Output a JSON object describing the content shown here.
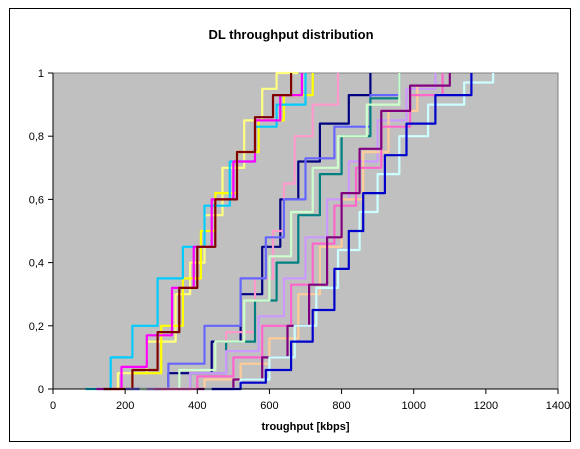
{
  "chart_data": {
    "type": "line",
    "title": "DL throughput distribution",
    "xlabel": "troughput [kbps]",
    "ylabel": "",
    "xlim": [
      0,
      1400
    ],
    "ylim": [
      0,
      1
    ],
    "x_ticks": [
      "0",
      "200",
      "400",
      "600",
      "800",
      "1000",
      "1200",
      "1400"
    ],
    "y_ticks": [
      "0",
      "0,2",
      "0,4",
      "0,6",
      "0,8",
      "1"
    ],
    "grid": false,
    "plot_background": "#c0c0c0",
    "series": [
      {
        "color": "#ffff80",
        "points": [
          [
            100,
            0
          ],
          [
            180,
            0.05
          ],
          [
            260,
            0.15
          ],
          [
            340,
            0.3
          ],
          [
            380,
            0.4
          ],
          [
            420,
            0.55
          ],
          [
            470,
            0.7
          ],
          [
            530,
            0.85
          ],
          [
            580,
            0.95
          ],
          [
            620,
            1
          ],
          [
            680,
            1
          ]
        ]
      },
      {
        "color": "#ffff00",
        "points": [
          [
            140,
            0
          ],
          [
            220,
            0.05
          ],
          [
            300,
            0.2
          ],
          [
            360,
            0.35
          ],
          [
            410,
            0.5
          ],
          [
            450,
            0.62
          ],
          [
            510,
            0.75
          ],
          [
            570,
            0.85
          ],
          [
            640,
            0.93
          ],
          [
            720,
            1
          ]
        ]
      },
      {
        "color": "#00ccff",
        "points": [
          [
            90,
            0
          ],
          [
            160,
            0.1
          ],
          [
            220,
            0.2
          ],
          [
            290,
            0.35
          ],
          [
            360,
            0.45
          ],
          [
            420,
            0.58
          ],
          [
            490,
            0.72
          ],
          [
            560,
            0.83
          ],
          [
            620,
            0.9
          ],
          [
            700,
            1
          ]
        ]
      },
      {
        "color": "#ff00ff",
        "points": [
          [
            120,
            0
          ],
          [
            190,
            0.07
          ],
          [
            260,
            0.17
          ],
          [
            330,
            0.32
          ],
          [
            390,
            0.45
          ],
          [
            440,
            0.6
          ],
          [
            500,
            0.72
          ],
          [
            560,
            0.85
          ],
          [
            630,
            0.93
          ],
          [
            690,
            1
          ]
        ]
      },
      {
        "color": "#800000",
        "points": [
          [
            140,
            0
          ],
          [
            220,
            0.06
          ],
          [
            290,
            0.18
          ],
          [
            350,
            0.32
          ],
          [
            400,
            0.45
          ],
          [
            450,
            0.6
          ],
          [
            510,
            0.75
          ],
          [
            560,
            0.86
          ],
          [
            610,
            0.93
          ],
          [
            660,
            1
          ]
        ]
      },
      {
        "color": "#000080",
        "points": [
          [
            220,
            0
          ],
          [
            320,
            0.05
          ],
          [
            440,
            0.15
          ],
          [
            520,
            0.3
          ],
          [
            580,
            0.45
          ],
          [
            630,
            0.6
          ],
          [
            680,
            0.72
          ],
          [
            740,
            0.84
          ],
          [
            820,
            0.93
          ],
          [
            880,
            1
          ]
        ]
      },
      {
        "color": "#ff99cc",
        "points": [
          [
            260,
            0
          ],
          [
            380,
            0.05
          ],
          [
            480,
            0.18
          ],
          [
            560,
            0.35
          ],
          [
            610,
            0.5
          ],
          [
            640,
            0.65
          ],
          [
            670,
            0.8
          ],
          [
            720,
            0.9
          ],
          [
            790,
            1
          ]
        ]
      },
      {
        "color": "#6666ff",
        "points": [
          [
            200,
            0
          ],
          [
            320,
            0.08
          ],
          [
            420,
            0.2
          ],
          [
            520,
            0.35
          ],
          [
            590,
            0.48
          ],
          [
            640,
            0.6
          ],
          [
            700,
            0.73
          ],
          [
            780,
            0.83
          ],
          [
            880,
            0.93
          ],
          [
            960,
            1
          ]
        ]
      },
      {
        "color": "#008080",
        "points": [
          [
            260,
            0
          ],
          [
            380,
            0.05
          ],
          [
            480,
            0.15
          ],
          [
            560,
            0.28
          ],
          [
            620,
            0.4
          ],
          [
            680,
            0.55
          ],
          [
            740,
            0.68
          ],
          [
            800,
            0.8
          ],
          [
            880,
            0.92
          ],
          [
            960,
            1
          ]
        ]
      },
      {
        "color": "#ccffcc",
        "points": [
          [
            240,
            0
          ],
          [
            350,
            0.06
          ],
          [
            450,
            0.15
          ],
          [
            530,
            0.28
          ],
          [
            600,
            0.42
          ],
          [
            660,
            0.56
          ],
          [
            720,
            0.7
          ],
          [
            790,
            0.8
          ],
          [
            870,
            0.9
          ],
          [
            960,
            1
          ]
        ]
      },
      {
        "color": "#cc99ff",
        "points": [
          [
            260,
            0
          ],
          [
            380,
            0.05
          ],
          [
            480,
            0.12
          ],
          [
            570,
            0.23
          ],
          [
            640,
            0.35
          ],
          [
            700,
            0.48
          ],
          [
            760,
            0.6
          ],
          [
            820,
            0.72
          ],
          [
            900,
            0.85
          ],
          [
            980,
            0.95
          ],
          [
            1060,
            1
          ]
        ]
      },
      {
        "color": "#ffcc99",
        "points": [
          [
            300,
            0
          ],
          [
            420,
            0.03
          ],
          [
            520,
            0.08
          ],
          [
            600,
            0.16
          ],
          [
            680,
            0.3
          ],
          [
            740,
            0.45
          ],
          [
            800,
            0.6
          ],
          [
            860,
            0.75
          ],
          [
            930,
            0.88
          ],
          [
            1010,
            0.96
          ],
          [
            1100,
            1
          ]
        ]
      },
      {
        "color": "#ff66cc",
        "points": [
          [
            280,
            0
          ],
          [
            400,
            0.04
          ],
          [
            500,
            0.1
          ],
          [
            580,
            0.2
          ],
          [
            660,
            0.33
          ],
          [
            720,
            0.46
          ],
          [
            780,
            0.58
          ],
          [
            840,
            0.7
          ],
          [
            910,
            0.83
          ],
          [
            990,
            0.93
          ],
          [
            1080,
            1
          ]
        ]
      },
      {
        "color": "#800080",
        "points": [
          [
            400,
            0
          ],
          [
            500,
            0.03
          ],
          [
            580,
            0.1
          ],
          [
            650,
            0.2
          ],
          [
            710,
            0.33
          ],
          [
            760,
            0.48
          ],
          [
            800,
            0.62
          ],
          [
            850,
            0.76
          ],
          [
            910,
            0.88
          ],
          [
            990,
            0.96
          ],
          [
            1100,
            1
          ]
        ]
      },
      {
        "color": "#ccffff",
        "points": [
          [
            420,
            0
          ],
          [
            520,
            0.03
          ],
          [
            600,
            0.1
          ],
          [
            670,
            0.2
          ],
          [
            730,
            0.32
          ],
          [
            790,
            0.44
          ],
          [
            850,
            0.56
          ],
          [
            900,
            0.68
          ],
          [
            960,
            0.8
          ],
          [
            1040,
            0.9
          ],
          [
            1140,
            0.97
          ],
          [
            1220,
            1
          ]
        ]
      },
      {
        "color": "#0000cc",
        "points": [
          [
            440,
            0
          ],
          [
            520,
            0.02
          ],
          [
            590,
            0.06
          ],
          [
            660,
            0.15
          ],
          [
            720,
            0.25
          ],
          [
            780,
            0.38
          ],
          [
            820,
            0.5
          ],
          [
            860,
            0.62
          ],
          [
            920,
            0.74
          ],
          [
            980,
            0.84
          ],
          [
            1060,
            0.93
          ],
          [
            1160,
            1
          ]
        ]
      }
    ]
  }
}
